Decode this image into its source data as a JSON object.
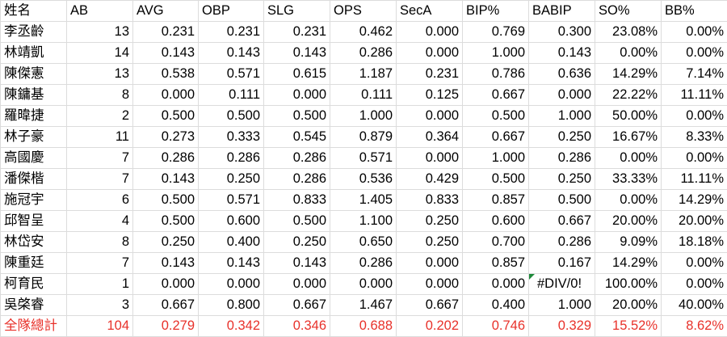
{
  "table": {
    "header": [
      "姓名",
      "AB",
      "AVG",
      "OBP",
      "SLG",
      "OPS",
      "SecA",
      "BIP%",
      "BABIP",
      "SO%",
      "BB%"
    ],
    "rows": [
      [
        "李丞齡",
        "13",
        "0.231",
        "0.231",
        "0.231",
        "0.462",
        "0.000",
        "0.769",
        "0.300",
        "23.08%",
        "0.00%"
      ],
      [
        "林靖凱",
        "14",
        "0.143",
        "0.143",
        "0.143",
        "0.286",
        "0.000",
        "1.000",
        "0.143",
        "0.00%",
        "0.00%"
      ],
      [
        "陳傑憲",
        "13",
        "0.538",
        "0.571",
        "0.615",
        "1.187",
        "0.231",
        "0.786",
        "0.636",
        "14.29%",
        "7.14%"
      ],
      [
        "陳鏞基",
        "8",
        "0.000",
        "0.111",
        "0.000",
        "0.111",
        "0.125",
        "0.667",
        "0.000",
        "22.22%",
        "11.11%"
      ],
      [
        "羅暐捷",
        "2",
        "0.500",
        "0.500",
        "0.500",
        "1.000",
        "0.000",
        "0.500",
        "1.000",
        "50.00%",
        "0.00%"
      ],
      [
        "林子豪",
        "11",
        "0.273",
        "0.333",
        "0.545",
        "0.879",
        "0.364",
        "0.667",
        "0.250",
        "16.67%",
        "8.33%"
      ],
      [
        "高國慶",
        "7",
        "0.286",
        "0.286",
        "0.286",
        "0.571",
        "0.000",
        "1.000",
        "0.286",
        "0.00%",
        "0.00%"
      ],
      [
        "潘傑楷",
        "7",
        "0.143",
        "0.250",
        "0.286",
        "0.536",
        "0.429",
        "0.500",
        "0.250",
        "33.33%",
        "11.11%"
      ],
      [
        "施冠宇",
        "6",
        "0.500",
        "0.571",
        "0.833",
        "1.405",
        "0.833",
        "0.857",
        "0.500",
        "0.00%",
        "14.29%"
      ],
      [
        "邱智呈",
        "4",
        "0.500",
        "0.600",
        "0.500",
        "1.100",
        "0.250",
        "0.600",
        "0.667",
        "20.00%",
        "20.00%"
      ],
      [
        "林岱安",
        "8",
        "0.250",
        "0.400",
        "0.250",
        "0.650",
        "0.250",
        "0.700",
        "0.286",
        "9.09%",
        "18.18%"
      ],
      [
        "陳重廷",
        "7",
        "0.143",
        "0.143",
        "0.143",
        "0.286",
        "0.000",
        "0.857",
        "0.167",
        "14.29%",
        "0.00%"
      ],
      [
        "柯育民",
        "1",
        "0.000",
        "0.000",
        "0.000",
        "0.000",
        "0.000",
        "0.000",
        "#DIV/0!",
        "100.00%",
        "0.00%"
      ],
      [
        "吳棨睿",
        "3",
        "0.667",
        "0.800",
        "0.667",
        "1.467",
        "0.667",
        "0.400",
        "1.000",
        "20.00%",
        "40.00%"
      ]
    ],
    "total": [
      "全隊總計",
      "104",
      "0.279",
      "0.342",
      "0.346",
      "0.688",
      "0.202",
      "0.746",
      "0.329",
      "15.52%",
      "8.62%"
    ]
  }
}
